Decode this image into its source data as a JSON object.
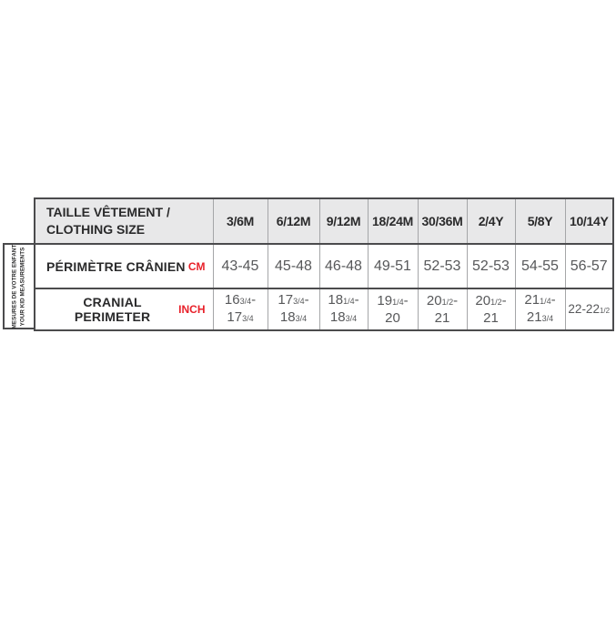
{
  "side_label": {
    "line1": "MESURES DE VOTRE ENFANT",
    "line2": "YOUR KID MEASUREMENTS"
  },
  "chart_data": {
    "type": "table",
    "title_line1": "TAILLE VÊTEMENT /",
    "title_line2": "CLOTHING SIZE",
    "columns": [
      "3/6M",
      "6/12M",
      "9/12M",
      "18/24M",
      "30/36M",
      "2/4Y",
      "5/8Y",
      "10/14Y"
    ],
    "rows": [
      {
        "label": "PÉRIMÈTRE CRÂNIEN",
        "unit": "CM",
        "values": [
          "43-45",
          "45-48",
          "46-48",
          "49-51",
          "52-53",
          "52-53",
          "54-55",
          "56-57"
        ],
        "lines": [
          [
            "43-45"
          ],
          [
            "45-48"
          ],
          [
            "46-48"
          ],
          [
            "49-51"
          ],
          [
            "52-53"
          ],
          [
            "52-53"
          ],
          [
            "54-55"
          ],
          [
            "56-57"
          ]
        ]
      },
      {
        "label": "CRANIAL PERIMETER",
        "unit": "INCH",
        "values": [
          "16¾-17¾",
          "17¾-18¾",
          "18¼-18¾",
          "19¼-20",
          "20½-21",
          "20½-21",
          "21¼-21¾",
          "22-22½"
        ],
        "lines": [
          [
            "16*3/4*-",
            "17*3/4*"
          ],
          [
            "17*3/4*-",
            "18*3/4*"
          ],
          [
            "18*1/4*-",
            "18*3/4*"
          ],
          [
            "19*1/4*-",
            "20"
          ],
          [
            "20*1/2*-",
            "21"
          ],
          [
            "20*1/2*-",
            "21"
          ],
          [
            "21*1/4*-",
            "21*3/4*"
          ],
          [
            "22-22*1/2*"
          ]
        ]
      }
    ]
  },
  "colors": {
    "accent_red": "#e8212a",
    "header_bg": "#e8e8e9",
    "text_dark": "#2a2a2b",
    "value_gray": "#57585a",
    "border_dark": "#4b4b4d",
    "border_light": "#a5a6a8"
  }
}
